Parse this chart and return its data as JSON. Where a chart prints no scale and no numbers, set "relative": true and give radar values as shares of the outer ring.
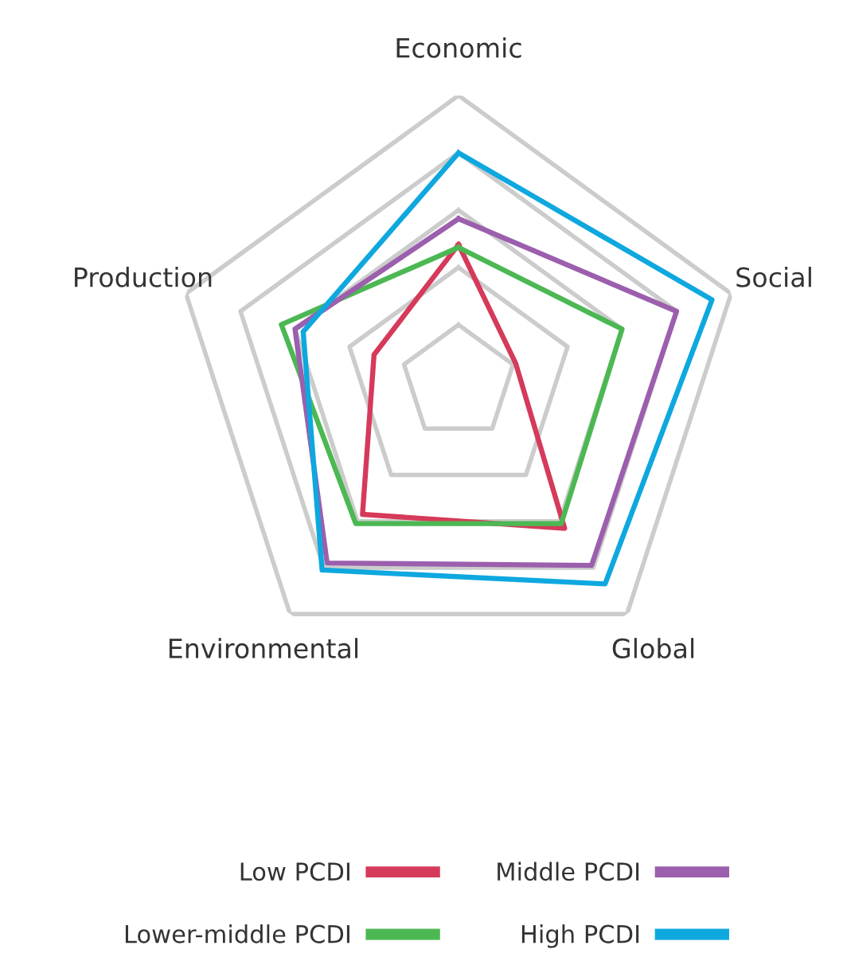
{
  "chart_data": {
    "type": "radar",
    "relative": true,
    "grid": true,
    "legend": "bottom",
    "categories": [
      "Economic",
      "Social",
      "Global",
      "Environmental",
      "Production"
    ],
    "series": [
      {
        "name": "Low PCDI",
        "color": "#d63a5a",
        "values": [
          0.48,
          0.21,
          0.63,
          0.57,
          0.31
        ]
      },
      {
        "name": "Lower-middle PCDI",
        "color": "#4cb853",
        "values": [
          0.47,
          0.6,
          0.61,
          0.61,
          0.65
        ]
      },
      {
        "name": "Middle PCDI",
        "color": "#9b5fad",
        "values": [
          0.57,
          0.8,
          0.79,
          0.78,
          0.6
        ]
      },
      {
        "name": "High PCDI",
        "color": "#0ea8df",
        "values": [
          0.8,
          0.93,
          0.87,
          0.81,
          0.57
        ]
      }
    ]
  }
}
